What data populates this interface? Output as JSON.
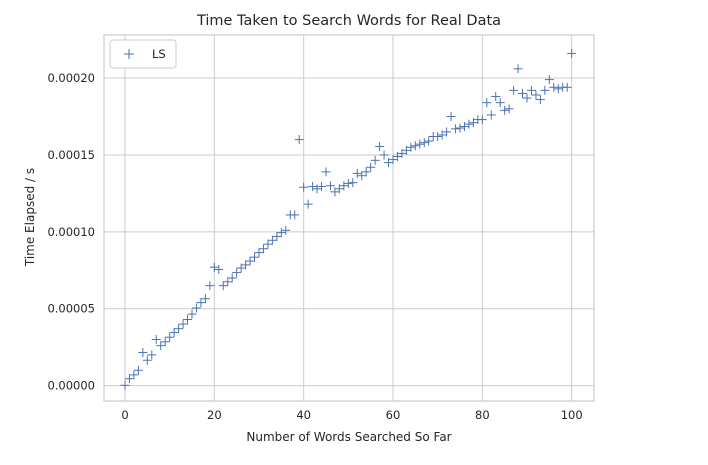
{
  "chart_data": {
    "type": "scatter",
    "title": "Time Taken to Search Words for Real Data",
    "xlabel": "Number of Words Searched So Far",
    "ylabel": "Time Elapsed / s",
    "xlim": [
      -4.7,
      105
    ],
    "ylim": [
      -1e-05,
      0.000228
    ],
    "xticks": [
      0,
      20,
      40,
      60,
      80,
      100
    ],
    "xtick_labels": [
      "0",
      "20",
      "40",
      "60",
      "80",
      "100"
    ],
    "yticks": [
      0,
      5e-05,
      0.0001,
      0.00015,
      0.0002
    ],
    "ytick_labels": [
      "0.00000",
      "0.00005",
      "0.00010",
      "0.00015",
      "0.00020"
    ],
    "grid": true,
    "legend_position": "top-left",
    "marker": "+",
    "color": "#4c72b0",
    "series": [
      {
        "name": "LS",
        "x": [
          0,
          1,
          2,
          3,
          4,
          5,
          6,
          7,
          8,
          9,
          10,
          11,
          12,
          13,
          14,
          15,
          16,
          17,
          18,
          19,
          20,
          21,
          22,
          23,
          24,
          25,
          26,
          27,
          28,
          29,
          30,
          31,
          32,
          33,
          34,
          35,
          36,
          37,
          38,
          39,
          40,
          41,
          42,
          43,
          44,
          45,
          46,
          47,
          48,
          49,
          50,
          51,
          52,
          53,
          54,
          55,
          56,
          57,
          58,
          59,
          60,
          61,
          62,
          63,
          64,
          65,
          66,
          67,
          68,
          69,
          70,
          71,
          72,
          73,
          74,
          75,
          76,
          77,
          78,
          79,
          80,
          81,
          82,
          83,
          84,
          85,
          86,
          87,
          88,
          89,
          90,
          91,
          92,
          93,
          94,
          95,
          96,
          97,
          98,
          99,
          100
        ],
        "y": [
          2e-07,
          4.5e-06,
          7e-06,
          1e-05,
          2.15e-05,
          1.65e-05,
          2e-05,
          3e-05,
          2.6e-05,
          2.85e-05,
          3.15e-05,
          3.45e-05,
          3.7e-05,
          4e-05,
          4.3e-05,
          4.65e-05,
          5.05e-05,
          5.4e-05,
          5.65e-05,
          6.5e-05,
          7.7e-05,
          7.55e-05,
          6.5e-05,
          6.75e-05,
          7e-05,
          7.35e-05,
          7.65e-05,
          7.85e-05,
          8.1e-05,
          8.35e-05,
          8.65e-05,
          8.9e-05,
          9.2e-05,
          9.45e-05,
          9.7e-05,
          9.95e-05,
          0.000101,
          0.000111,
          0.000111,
          0.00016,
          0.000129,
          0.000118,
          0.0001295,
          0.000128,
          0.0001295,
          0.000139,
          0.00013,
          0.000126,
          0.000128,
          0.00013,
          0.0001315,
          0.000132,
          0.000138,
          0.0001365,
          0.000139,
          0.000142,
          0.0001465,
          0.0001555,
          0.00015,
          0.000145,
          0.000147,
          0.000149,
          0.000151,
          0.000153,
          0.000155,
          0.000156,
          0.000157,
          0.000158,
          0.000159,
          0.000162,
          0.000162,
          0.000163,
          0.000165,
          0.000175,
          0.000167,
          0.0001675,
          0.0001685,
          0.00017,
          0.000171,
          0.000173,
          0.000173,
          0.000184,
          0.000176,
          0.000188,
          0.000184,
          0.000179,
          0.00018,
          0.000192,
          0.000206,
          0.00019,
          0.000187,
          0.000192,
          0.000189,
          0.000186,
          0.000192,
          0.000199,
          0.000194,
          0.000193,
          0.000194,
          0.000194,
          0.000216
        ]
      }
    ]
  }
}
